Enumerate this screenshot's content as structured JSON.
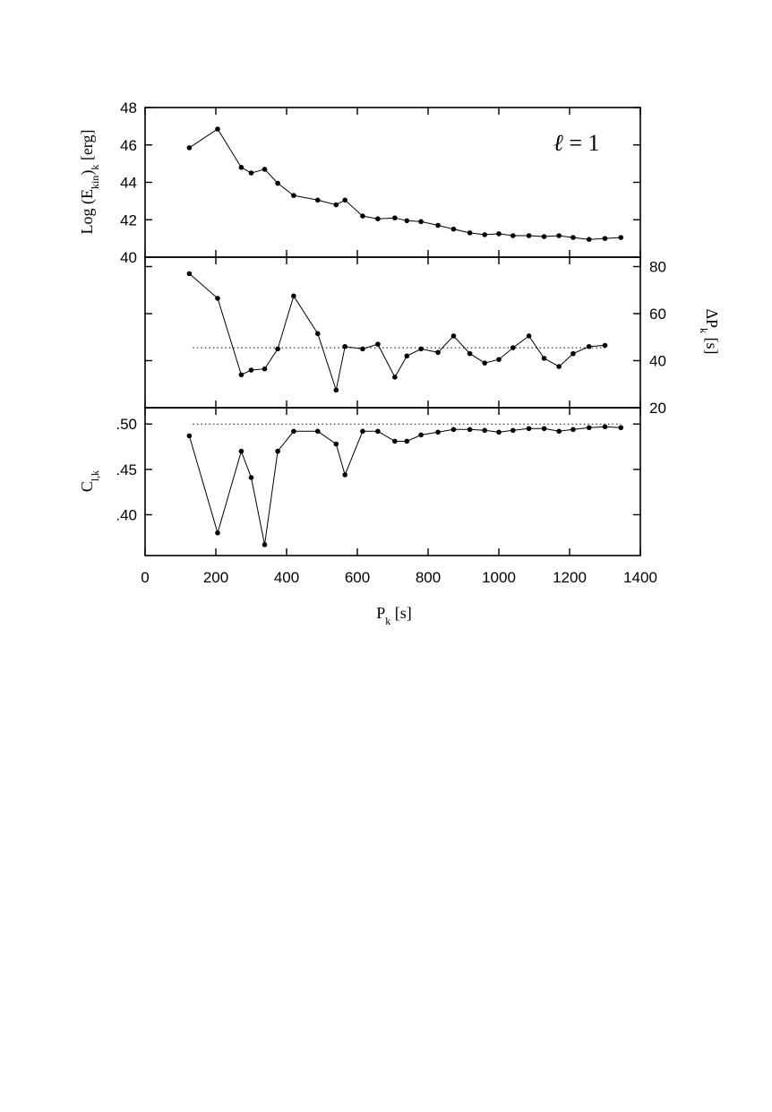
{
  "chart_data": {
    "type": "line",
    "shared_x": {
      "label_main": "P",
      "label_sub": "k",
      "label_unit": " [s]",
      "lim": [
        0,
        1400
      ],
      "ticks": [
        0,
        200,
        400,
        600,
        800,
        1000,
        1200,
        1400
      ],
      "tick_labels": [
        "0",
        "200",
        "400",
        "600",
        "800",
        "1000",
        "1200",
        "1400"
      ]
    },
    "annotation": {
      "letter": "ℓ",
      "rest": " = 1"
    },
    "panels": [
      {
        "id": "kinetic-energy",
        "ylabel_parts": {
          "a": "Log (E",
          "b": "kin",
          "c": ")",
          "d": "k",
          "e": " [erg]"
        },
        "ylim": [
          40,
          48
        ],
        "yticks": [
          40,
          42,
          44,
          46,
          48
        ],
        "ytick_labels": [
          "40",
          "42",
          "44",
          "46",
          "48"
        ],
        "axis_side": "left",
        "x": [
          125,
          205,
          272,
          300,
          338,
          375,
          420,
          488,
          540,
          565,
          615,
          658,
          706,
          740,
          780,
          828,
          872,
          918,
          960,
          1000,
          1040,
          1085,
          1128,
          1170,
          1210,
          1255,
          1300,
          1345
        ],
        "y": [
          45.85,
          46.85,
          44.8,
          44.5,
          44.7,
          43.95,
          43.3,
          43.05,
          42.8,
          43.05,
          42.2,
          42.05,
          42.1,
          41.95,
          41.9,
          41.7,
          41.5,
          41.3,
          41.2,
          41.25,
          41.15,
          41.15,
          41.1,
          41.15,
          41.05,
          40.95,
          41.0,
          41.05
        ]
      },
      {
        "id": "period-spacing",
        "ylabel_parts": {
          "a": "ΔP",
          "b": "k",
          "c": " [s]"
        },
        "ylim": [
          20,
          84
        ],
        "yticks": [
          20,
          40,
          60,
          80
        ],
        "ytick_labels": [
          "20",
          "40",
          "60",
          "80"
        ],
        "axis_side": "right",
        "reference_line": 45.5,
        "x": [
          125,
          205,
          272,
          300,
          338,
          375,
          420,
          488,
          540,
          565,
          615,
          658,
          706,
          740,
          780,
          828,
          872,
          918,
          960,
          1000,
          1040,
          1085,
          1128,
          1170,
          1210,
          1255,
          1300
        ],
        "y": [
          77,
          66.5,
          34,
          36,
          36.5,
          45,
          67.5,
          51.5,
          27.5,
          46,
          45,
          47,
          33,
          42,
          45,
          43.5,
          50.5,
          43,
          39,
          40.5,
          45.5,
          50.5,
          41,
          37.5,
          43,
          46,
          46.5
        ]
      },
      {
        "id": "coefficient",
        "ylabel_parts": {
          "a": "C",
          "b": "l,k"
        },
        "ylim": [
          0.355,
          0.518
        ],
        "yticks": [
          0.4,
          0.45,
          0.5
        ],
        "ytick_labels": [
          ".40",
          ".45",
          ".50"
        ],
        "axis_side": "left",
        "reference_line": 0.5,
        "x": [
          125,
          205,
          272,
          300,
          338,
          375,
          420,
          488,
          540,
          565,
          615,
          658,
          706,
          740,
          780,
          828,
          872,
          918,
          960,
          1000,
          1040,
          1085,
          1128,
          1170,
          1210,
          1255,
          1300,
          1345
        ],
        "y": [
          0.487,
          0.38,
          0.47,
          0.441,
          0.367,
          0.47,
          0.492,
          0.492,
          0.478,
          0.444,
          0.492,
          0.492,
          0.481,
          0.481,
          0.488,
          0.491,
          0.494,
          0.494,
          0.493,
          0.491,
          0.493,
          0.495,
          0.495,
          0.492,
          0.494,
          0.496,
          0.497,
          0.496
        ]
      }
    ]
  }
}
